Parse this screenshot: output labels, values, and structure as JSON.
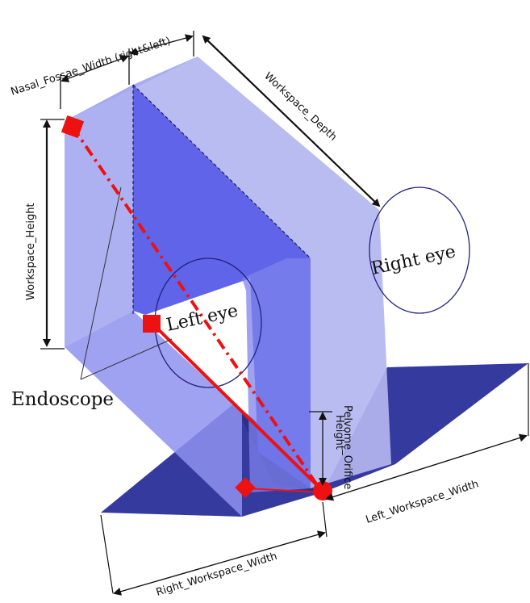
{
  "labels": {
    "nasal_fossae_width": "Nasal_Fossae_Width (right&left)",
    "workspace_depth": "Workspace_Depth",
    "workspace_height": "Workspace_Height",
    "right_eye": "Right eye",
    "left_eye": "Left eye",
    "endoscope": "Endoscope",
    "pedicle_height_line1": "Pelvome_Orifice",
    "pedicle_height_line2": "Height",
    "left_workspace_width": "Left_Workspace_Width",
    "right_workspace_width": "Right_Workspace_Width"
  },
  "colors": {
    "face_light": "#b3b6f0",
    "face_mid": "#7e83ec",
    "face_dark": "#4a4fe6",
    "floor": "#353a9e",
    "endoscope": "#ee1111",
    "outline": "#1a1a2e"
  }
}
